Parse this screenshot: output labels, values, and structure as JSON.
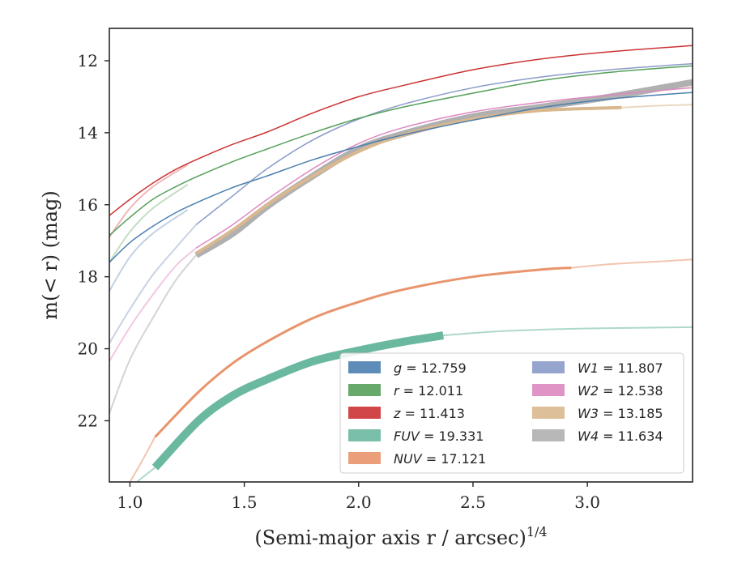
{
  "chart_data": {
    "type": "line",
    "xlabel": "(Semi-major axis r / arcsec)",
    "xlabel_exp": "1/4",
    "ylabel": "m(< r) (mag)",
    "xlim": [
      0.91,
      3.46
    ],
    "ylim": [
      23.7,
      11.1
    ],
    "y_inverted": true,
    "xticks": [
      1.0,
      1.5,
      2.0,
      2.5,
      3.0
    ],
    "xtick_labels": [
      "1.0",
      "1.5",
      "2.0",
      "2.5",
      "3.0"
    ],
    "yticks": [
      12,
      14,
      16,
      18,
      20,
      22
    ],
    "ytick_labels": [
      "12",
      "14",
      "16",
      "18",
      "20",
      "22"
    ],
    "grid": false,
    "legend_position": "lower-right",
    "series": [
      {
        "name": "g = 12.759",
        "band": "g",
        "mag": "12.759",
        "color": "#4c7fb0",
        "x": [
          0.91,
          1.0,
          1.1,
          1.2,
          1.3,
          1.45,
          1.6,
          1.8,
          2.0,
          2.2,
          2.5,
          2.8,
          3.1,
          3.46
        ],
        "y": [
          17.6,
          17.05,
          16.6,
          16.22,
          15.92,
          15.52,
          15.2,
          14.75,
          14.38,
          14.05,
          13.65,
          13.3,
          13.06,
          12.88
        ],
        "width": 1.5
      },
      {
        "name": "r = 12.011",
        "band": "r",
        "mag": "12.011",
        "color": "#55a05a",
        "x": [
          0.91,
          1.0,
          1.1,
          1.2,
          1.3,
          1.45,
          1.6,
          1.8,
          2.0,
          2.2,
          2.5,
          2.8,
          3.1,
          3.46
        ],
        "y": [
          16.85,
          16.35,
          15.85,
          15.5,
          15.2,
          14.8,
          14.45,
          14.0,
          13.6,
          13.28,
          12.9,
          12.55,
          12.32,
          12.14
        ],
        "width": 1.5
      },
      {
        "name": "z = 11.413",
        "band": "z",
        "mag": "11.413",
        "color": "#cc3333",
        "x": [
          0.91,
          1.0,
          1.1,
          1.2,
          1.3,
          1.45,
          1.6,
          1.8,
          2.0,
          2.2,
          2.5,
          2.8,
          3.1,
          3.46
        ],
        "y": [
          16.3,
          15.85,
          15.4,
          15.02,
          14.72,
          14.32,
          13.98,
          13.45,
          13.0,
          12.68,
          12.25,
          11.95,
          11.75,
          11.58
        ],
        "width": 1.5
      },
      {
        "name": "FUV = 19.331",
        "band": "FUV",
        "mag": "19.331",
        "color": "#6bb8a0",
        "x": [
          1.11,
          1.3,
          1.45,
          1.6,
          1.8,
          2.0,
          2.2,
          2.37
        ],
        "y": [
          23.3,
          22.0,
          21.3,
          20.85,
          20.35,
          20.05,
          19.8,
          19.63
        ],
        "width": 10
      },
      {
        "name": "NUV = 17.121",
        "band": "NUV",
        "mag": "17.121",
        "color": "#e8946c",
        "x": [
          1.11,
          1.3,
          1.45,
          1.6,
          1.8,
          2.0,
          2.2,
          2.5,
          2.8,
          2.93
        ],
        "y": [
          22.45,
          21.2,
          20.4,
          19.8,
          19.15,
          18.7,
          18.35,
          18.0,
          17.8,
          17.75
        ],
        "width": 3
      },
      {
        "name": "W1 = 11.807",
        "band": "W1",
        "mag": "11.807",
        "color": "#8a9bc8",
        "x": [
          1.29,
          1.45,
          1.6,
          1.8,
          2.0,
          2.2,
          2.5,
          2.8,
          3.1,
          3.46
        ],
        "y": [
          16.55,
          15.75,
          15.0,
          14.2,
          13.62,
          13.2,
          12.75,
          12.45,
          12.25,
          12.08
        ],
        "width": 1.5
      },
      {
        "name": "W2 = 12.538",
        "band": "W2",
        "mag": "12.538",
        "color": "#dd88c0",
        "x": [
          1.29,
          1.45,
          1.6,
          1.8,
          2.0,
          2.2,
          2.5,
          2.8,
          3.1,
          3.46
        ],
        "y": [
          17.2,
          16.55,
          15.85,
          15.0,
          14.3,
          13.85,
          13.42,
          13.15,
          12.95,
          12.75
        ],
        "width": 1.5
      },
      {
        "name": "W3 = 13.185",
        "band": "W3",
        "mag": "13.185",
        "color": "#d9b88f",
        "x": [
          1.29,
          1.45,
          1.6,
          1.8,
          2.0,
          2.2,
          2.5,
          2.8,
          3.15
        ],
        "y": [
          17.35,
          16.7,
          16.0,
          15.2,
          14.52,
          14.05,
          13.62,
          13.38,
          13.3
        ],
        "width": 4
      },
      {
        "name": "W4 = 11.634",
        "band": "W4",
        "mag": "11.634",
        "color": "#b0b0b0",
        "x": [
          1.29,
          1.45,
          1.6,
          1.8,
          2.0,
          2.2,
          2.5,
          2.8,
          3.1,
          3.46
        ],
        "y": [
          17.4,
          16.8,
          16.05,
          15.2,
          14.45,
          14.02,
          13.55,
          13.28,
          13.0,
          12.6
        ],
        "width": 8
      }
    ],
    "faint_extensions": [
      {
        "band": "g",
        "color": "#4c7fb0",
        "opacity": 0.35,
        "x": [
          0.91,
          1.0,
          1.1,
          1.25
        ],
        "y": [
          18.4,
          17.45,
          16.8,
          16.15
        ]
      },
      {
        "band": "r",
        "color": "#55a05a",
        "opacity": 0.35,
        "x": [
          0.91,
          1.0,
          1.1,
          1.25
        ],
        "y": [
          17.6,
          16.75,
          16.1,
          15.45
        ]
      },
      {
        "band": "z",
        "color": "#cc3333",
        "opacity": 0.35,
        "x": [
          0.91,
          1.0,
          1.1,
          1.25
        ],
        "y": [
          16.9,
          16.1,
          15.5,
          14.9
        ]
      },
      {
        "band": "W1",
        "color": "#8a9bc8",
        "opacity": 0.45,
        "x": [
          0.91,
          1.0,
          1.1,
          1.2,
          1.29
        ],
        "y": [
          19.85,
          18.9,
          17.95,
          17.2,
          16.55
        ]
      },
      {
        "band": "W2",
        "color": "#dd88c0",
        "opacity": 0.45,
        "x": [
          0.91,
          1.0,
          1.1,
          1.2,
          1.29
        ],
        "y": [
          20.35,
          19.4,
          18.5,
          17.7,
          17.2
        ]
      },
      {
        "band": "W4",
        "color": "#b0b0b0",
        "opacity": 0.55,
        "x": [
          0.91,
          1.0,
          1.1,
          1.2,
          1.29
        ],
        "y": [
          21.8,
          20.3,
          19.15,
          18.1,
          17.4
        ]
      },
      {
        "band": "W3",
        "color": "#d9b88f",
        "opacity": 0.55,
        "x": [
          3.15,
          3.3,
          3.46
        ],
        "y": [
          13.3,
          13.25,
          13.22
        ]
      },
      {
        "band": "NUV",
        "color": "#e8946c",
        "opacity": 0.55,
        "x": [
          2.93,
          3.1,
          3.3,
          3.46
        ],
        "y": [
          17.75,
          17.65,
          17.58,
          17.52
        ]
      },
      {
        "band": "NUV",
        "color": "#e8946c",
        "opacity": 0.55,
        "x": [
          1.0,
          1.05,
          1.11
        ],
        "y": [
          23.7,
          23.15,
          22.45
        ]
      },
      {
        "band": "FUV",
        "color": "#6bb8a0",
        "opacity": 0.55,
        "x": [
          2.37,
          2.6,
          2.9,
          3.2,
          3.46
        ],
        "y": [
          19.63,
          19.52,
          19.45,
          19.42,
          19.4
        ]
      },
      {
        "band": "FUV",
        "color": "#6bb8a0",
        "opacity": 0.55,
        "x": [
          1.03,
          1.11
        ],
        "y": [
          23.7,
          23.3
        ]
      }
    ]
  }
}
